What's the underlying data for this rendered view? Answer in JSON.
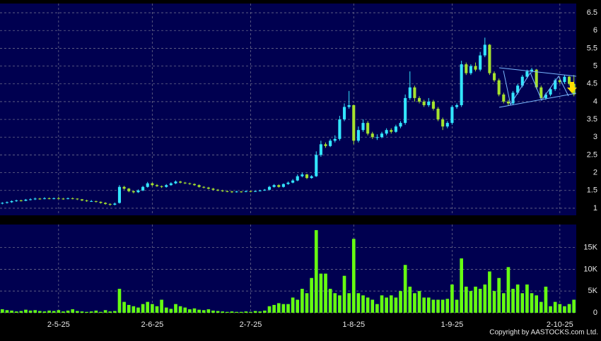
{
  "chart_data": [
    {
      "type": "candlestick",
      "ohlc": [
        [
          1.13,
          1.17,
          1.11,
          1.15
        ],
        [
          1.15,
          1.19,
          1.13,
          1.17
        ],
        [
          1.17,
          1.22,
          1.15,
          1.2
        ],
        [
          1.2,
          1.24,
          1.18,
          1.22
        ],
        [
          1.22,
          1.24,
          1.19,
          1.21
        ],
        [
          1.21,
          1.26,
          1.2,
          1.24
        ],
        [
          1.24,
          1.28,
          1.22,
          1.25
        ],
        [
          1.25,
          1.3,
          1.23,
          1.27
        ],
        [
          1.27,
          1.29,
          1.24,
          1.26
        ],
        [
          1.26,
          1.31,
          1.25,
          1.28
        ],
        [
          1.28,
          1.3,
          1.25,
          1.27
        ],
        [
          1.27,
          1.3,
          1.25,
          1.28
        ],
        [
          1.28,
          1.32,
          1.25,
          1.27
        ],
        [
          1.27,
          1.29,
          1.24,
          1.26
        ],
        [
          1.26,
          1.3,
          1.25,
          1.28
        ],
        [
          1.28,
          1.3,
          1.25,
          1.27
        ],
        [
          1.27,
          1.28,
          1.23,
          1.25
        ],
        [
          1.25,
          1.26,
          1.2,
          1.22
        ],
        [
          1.22,
          1.24,
          1.18,
          1.2
        ],
        [
          1.2,
          1.23,
          1.18,
          1.2
        ],
        [
          1.2,
          1.21,
          1.16,
          1.18
        ],
        [
          1.18,
          1.19,
          1.13,
          1.15
        ],
        [
          1.15,
          1.17,
          1.1,
          1.12
        ],
        [
          1.12,
          1.14,
          1.07,
          1.1
        ],
        [
          1.1,
          1.16,
          1.08,
          1.13
        ],
        [
          1.15,
          1.65,
          1.13,
          1.6
        ],
        [
          1.6,
          1.63,
          1.52,
          1.55
        ],
        [
          1.55,
          1.57,
          1.45,
          1.48
        ],
        [
          1.48,
          1.5,
          1.42,
          1.45
        ],
        [
          1.45,
          1.53,
          1.43,
          1.5
        ],
        [
          1.5,
          1.63,
          1.48,
          1.6
        ],
        [
          1.6,
          1.74,
          1.58,
          1.7
        ],
        [
          1.7,
          1.72,
          1.62,
          1.65
        ],
        [
          1.65,
          1.68,
          1.6,
          1.62
        ],
        [
          1.62,
          1.64,
          1.57,
          1.6
        ],
        [
          1.6,
          1.68,
          1.58,
          1.65
        ],
        [
          1.65,
          1.73,
          1.63,
          1.7
        ],
        [
          1.7,
          1.78,
          1.68,
          1.75
        ],
        [
          1.75,
          1.77,
          1.7,
          1.72
        ],
        [
          1.72,
          1.74,
          1.68,
          1.7
        ],
        [
          1.7,
          1.72,
          1.66,
          1.68
        ],
        [
          1.68,
          1.7,
          1.63,
          1.65
        ],
        [
          1.65,
          1.67,
          1.58,
          1.6
        ],
        [
          1.6,
          1.62,
          1.56,
          1.58
        ],
        [
          1.58,
          1.6,
          1.53,
          1.55
        ],
        [
          1.55,
          1.57,
          1.5,
          1.52
        ],
        [
          1.52,
          1.54,
          1.48,
          1.5
        ],
        [
          1.5,
          1.52,
          1.46,
          1.48
        ],
        [
          1.48,
          1.5,
          1.45,
          1.47
        ],
        [
          1.47,
          1.49,
          1.43,
          1.45
        ],
        [
          1.45,
          1.49,
          1.44,
          1.47
        ],
        [
          1.47,
          1.48,
          1.44,
          1.46
        ],
        [
          1.46,
          1.5,
          1.45,
          1.48
        ],
        [
          1.48,
          1.49,
          1.45,
          1.47
        ],
        [
          1.47,
          1.5,
          1.46,
          1.48
        ],
        [
          1.48,
          1.52,
          1.47,
          1.5
        ],
        [
          1.5,
          1.54,
          1.49,
          1.52
        ],
        [
          1.52,
          1.63,
          1.5,
          1.6
        ],
        [
          1.6,
          1.68,
          1.58,
          1.65
        ],
        [
          1.65,
          1.67,
          1.58,
          1.6
        ],
        [
          1.6,
          1.7,
          1.58,
          1.68
        ],
        [
          1.68,
          1.75,
          1.66,
          1.72
        ],
        [
          1.72,
          1.82,
          1.7,
          1.78
        ],
        [
          1.78,
          1.95,
          1.76,
          1.9
        ],
        [
          1.9,
          2.0,
          1.87,
          1.95
        ],
        [
          1.95,
          1.97,
          1.82,
          1.85
        ],
        [
          1.85,
          1.93,
          1.83,
          1.9
        ],
        [
          1.9,
          2.6,
          1.88,
          2.5
        ],
        [
          2.5,
          2.9,
          2.45,
          2.8
        ],
        [
          2.8,
          2.85,
          2.7,
          2.75
        ],
        [
          2.75,
          2.95,
          2.72,
          2.9
        ],
        [
          2.9,
          3.05,
          2.85,
          2.95
        ],
        [
          2.95,
          3.6,
          2.9,
          3.5
        ],
        [
          3.5,
          3.95,
          3.45,
          3.85
        ],
        [
          3.85,
          4.3,
          3.8,
          3.9
        ],
        [
          3.9,
          3.92,
          2.8,
          2.9
        ],
        [
          2.9,
          3.3,
          2.85,
          3.2
        ],
        [
          3.2,
          3.5,
          3.15,
          3.4
        ],
        [
          3.4,
          3.45,
          3.05,
          3.1
        ],
        [
          3.1,
          3.15,
          2.95,
          3.0
        ],
        [
          3.0,
          3.08,
          2.92,
          3.0
        ],
        [
          3.0,
          3.15,
          2.97,
          3.1
        ],
        [
          3.1,
          3.25,
          3.05,
          3.2
        ],
        [
          3.2,
          3.25,
          3.1,
          3.15
        ],
        [
          3.15,
          3.35,
          3.12,
          3.3
        ],
        [
          3.3,
          3.45,
          3.25,
          3.4
        ],
        [
          3.4,
          4.2,
          3.35,
          4.1
        ],
        [
          4.1,
          4.85,
          4.05,
          4.4
        ],
        [
          4.4,
          4.45,
          4.0,
          4.1
        ],
        [
          4.1,
          4.15,
          3.95,
          4.0
        ],
        [
          4.0,
          4.05,
          3.85,
          3.9
        ],
        [
          3.9,
          4.1,
          3.85,
          4.0
        ],
        [
          4.0,
          4.05,
          3.75,
          3.8
        ],
        [
          3.8,
          3.85,
          3.45,
          3.5
        ],
        [
          3.5,
          3.55,
          3.2,
          3.3
        ],
        [
          3.3,
          3.45,
          3.25,
          3.4
        ],
        [
          3.4,
          3.9,
          3.35,
          3.85
        ],
        [
          3.85,
          3.95,
          3.8,
          3.9
        ],
        [
          3.9,
          5.15,
          3.85,
          5.05
        ],
        [
          5.05,
          5.1,
          4.75,
          4.8
        ],
        [
          4.8,
          5.05,
          4.75,
          5.0
        ],
        [
          5.0,
          5.1,
          4.85,
          4.9
        ],
        [
          4.9,
          5.4,
          4.85,
          5.3
        ],
        [
          5.3,
          5.8,
          5.25,
          5.6
        ],
        [
          5.6,
          5.62,
          4.75,
          4.8
        ],
        [
          4.8,
          4.85,
          4.55,
          4.6
        ],
        [
          4.6,
          4.65,
          4.15,
          4.2
        ],
        [
          4.2,
          4.25,
          3.95,
          4.0
        ],
        [
          4.0,
          4.05,
          3.88,
          3.95
        ],
        [
          3.95,
          4.3,
          3.9,
          4.25
        ],
        [
          4.25,
          4.5,
          4.2,
          4.45
        ],
        [
          4.45,
          4.75,
          4.4,
          4.7
        ],
        [
          4.7,
          4.9,
          4.65,
          4.85
        ],
        [
          4.85,
          4.95,
          4.8,
          4.9
        ],
        [
          4.9,
          4.92,
          4.35,
          4.4
        ],
        [
          4.4,
          4.45,
          4.05,
          4.1
        ],
        [
          4.1,
          4.25,
          4.05,
          4.2
        ],
        [
          4.2,
          4.4,
          4.15,
          4.35
        ],
        [
          4.35,
          4.65,
          4.3,
          4.6
        ],
        [
          4.6,
          4.68,
          4.5,
          4.55
        ],
        [
          4.55,
          4.75,
          4.5,
          4.7
        ],
        [
          4.7,
          4.72,
          4.45,
          4.5
        ],
        [
          4.5,
          4.75,
          4.15,
          4.2
        ]
      ],
      "up_color": "#33e6ff",
      "down_color": "#a6e22e",
      "xlim": [
        -0.5,
        122.5
      ],
      "ylim": [
        0.8,
        6.76
      ],
      "yticks": [
        1,
        1.5,
        2,
        2.5,
        3,
        3.5,
        4,
        4.5,
        5,
        5.5,
        6,
        6.5
      ],
      "grid": true
    },
    {
      "type": "bar",
      "values": [
        800,
        600,
        500,
        300,
        400,
        700,
        500,
        600,
        400,
        300,
        500,
        400,
        600,
        300,
        500,
        800,
        400,
        300,
        200,
        300,
        500,
        200,
        600,
        300,
        400,
        5500,
        2500,
        1800,
        1500,
        1200,
        2000,
        2500,
        2000,
        1500,
        3000,
        1200,
        900,
        2000,
        1500,
        1200,
        800,
        1000,
        700,
        600,
        800,
        500,
        400,
        300,
        200,
        300,
        200,
        200,
        300,
        200,
        400,
        300,
        500,
        1500,
        1800,
        2200,
        2000,
        2000,
        3500,
        3000,
        5500,
        4500,
        8000,
        19000,
        9000,
        9000,
        5500,
        4500,
        4000,
        8500,
        4500,
        17000,
        4500,
        4000,
        3500,
        3000,
        2000,
        4000,
        3500,
        4000,
        3500,
        5000,
        11000,
        6000,
        4500,
        5000,
        3500,
        3500,
        3000,
        3000,
        3000,
        3200,
        6500,
        3000,
        12500,
        6000,
        5000,
        6000,
        5500,
        6500,
        9500,
        5000,
        8000,
        4500,
        10500,
        5500,
        6500,
        4500,
        6500,
        4500,
        4000,
        2500,
        6000,
        1500,
        2500,
        2000,
        1500,
        2000,
        3000
      ],
      "color": "#66ff11",
      "xlim": [
        -0.5,
        122.5
      ],
      "ylim": [
        0,
        20300
      ],
      "yticks": [
        0,
        {
          "value": 5000,
          "label": "5K"
        },
        {
          "value": 10000,
          "label": "10K"
        },
        {
          "value": 15000,
          "label": "15K"
        }
      ],
      "xticks": [
        {
          "value": 12,
          "label": "2-5-25"
        },
        {
          "value": 32,
          "label": "2-6-25"
        },
        {
          "value": 53,
          "label": "2-7-25"
        },
        {
          "value": 75,
          "label": "1-8-25"
        },
        {
          "value": 96,
          "label": "1-9-25"
        },
        {
          "value": 119,
          "label": "2-10-25"
        }
      ],
      "grid": true
    }
  ],
  "footer": {
    "copyright": "Copyright by AASTOCKS.com Ltd."
  }
}
